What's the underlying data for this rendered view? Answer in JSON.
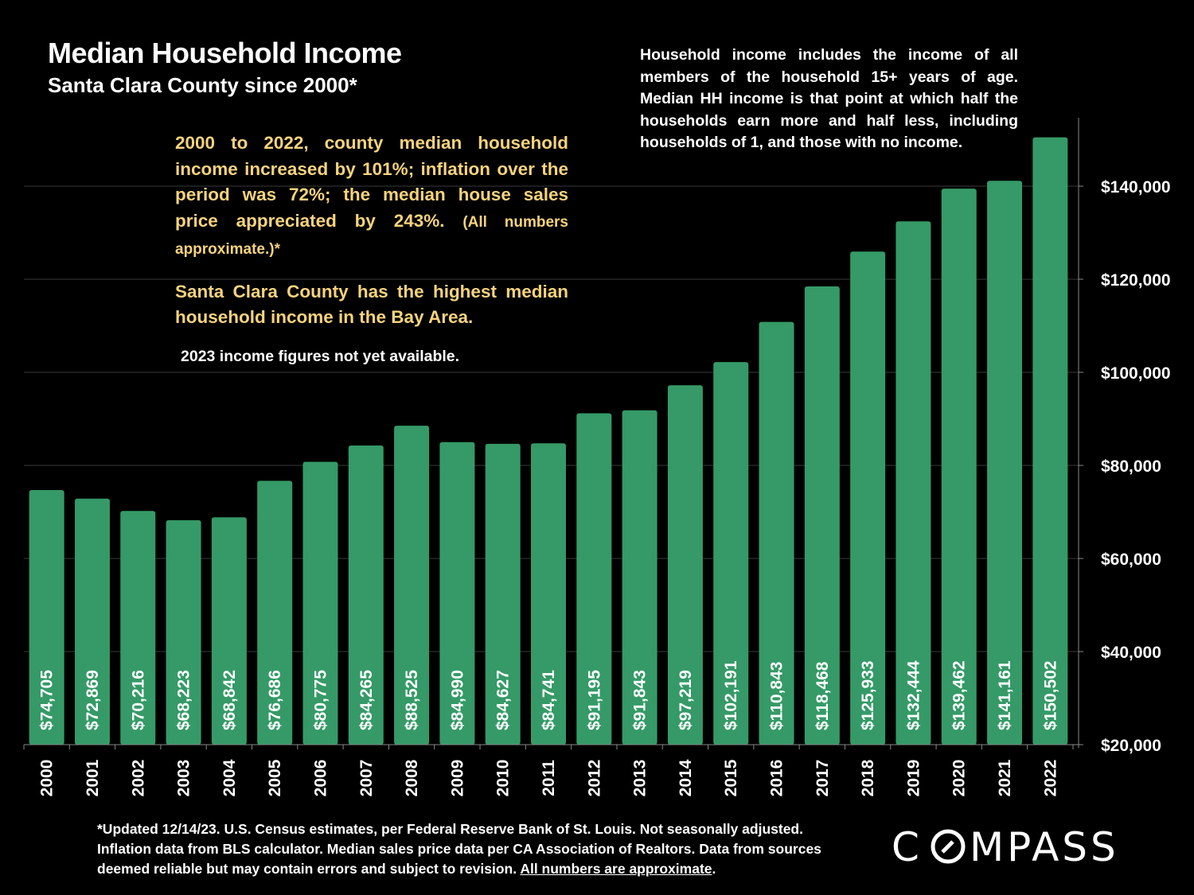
{
  "title": "Median Household Income",
  "subtitle": "Santa Clara County since 2000*",
  "note_right": "Household income includes the income of all members of the household 15+ years of age. Median HH income is that point at which half the households earn more and half less, including households of 1, and those with no income.",
  "note_left": {
    "p1_main": "2000 to 2022, county median household income increased by 101%; inflation over the period was 72%; the median house sales price appreciated by 243%.",
    "p1_small": "(All numbers approximate.)*",
    "p2": "Santa Clara County has the highest median household income in the Bay Area.",
    "p3": "2023 income figures not yet available."
  },
  "footer": {
    "text": "*Updated 12/14/23. U.S. Census estimates, per Federal Reserve Bank of St. Louis. Not seasonally adjusted. Inflation data from BLS calculator. Median sales price data per CA Association of Realtors. Data from sources deemed reliable but may contain errors and subject to revision.",
    "link": "All numbers are approximate",
    "end": "."
  },
  "logo": "COMPASS",
  "colors": {
    "bar": "#359a67",
    "grid": "#3a3a3a",
    "note_left": "#f6d37d",
    "background": "#000000"
  },
  "chart_data": {
    "type": "bar",
    "categories": [
      "2000",
      "2001",
      "2002",
      "2003",
      "2004",
      "2005",
      "2006",
      "2007",
      "2008",
      "2009",
      "2010",
      "2011",
      "2012",
      "2013",
      "2014",
      "2015",
      "2016",
      "2017",
      "2018",
      "2019",
      "2020",
      "2021",
      "2022"
    ],
    "values": [
      74705,
      72869,
      70216,
      68223,
      68842,
      76686,
      80775,
      84265,
      88525,
      84990,
      84627,
      84741,
      91195,
      91843,
      97219,
      102191,
      110843,
      118468,
      125933,
      132444,
      139462,
      141161,
      150502
    ],
    "data_labels": [
      "$74,705",
      "$72,869",
      "$70,216",
      "$68,223",
      "$68,842",
      "$76,686",
      "$80,775",
      "$84,265",
      "$88,525",
      "$84,990",
      "$84,627",
      "$84,741",
      "$91,195",
      "$91,843",
      "$97,219",
      "$102,191",
      "$110,843",
      "$118,468",
      "$125,933",
      "$132,444",
      "$139,462",
      "$141,161",
      "$150,502"
    ],
    "yticks": [
      20000,
      40000,
      60000,
      80000,
      100000,
      120000,
      140000
    ],
    "ytick_labels": [
      "$20,000",
      "$40,000",
      "$60,000",
      "$80,000",
      "$100,000",
      "$120,000",
      "$140,000"
    ],
    "ylim": [
      20000,
      150502
    ],
    "y_axis_position": "right",
    "grid": true,
    "title": "Median Household Income",
    "subtitle": "Santa Clara County since 2000*"
  }
}
